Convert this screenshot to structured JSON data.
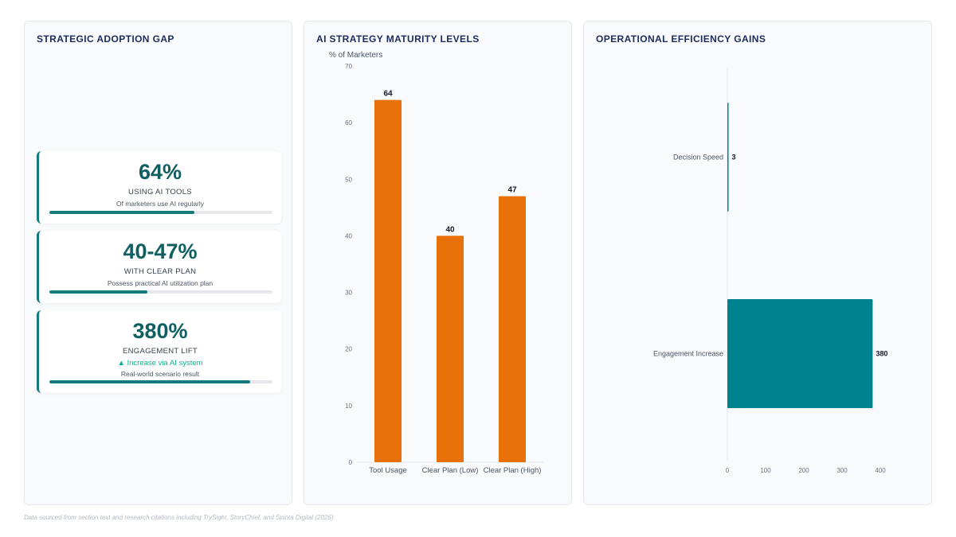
{
  "panel_adoption": {
    "title": "STRATEGIC ADOPTION GAP",
    "cards": [
      {
        "value": "64%",
        "label": "USING AI TOOLS",
        "trend": "",
        "sub": "Of marketers use AI regularly",
        "progress": 0.65
      },
      {
        "value": "40-47%",
        "label": "WITH CLEAR PLAN",
        "trend": "",
        "sub": "Possess practical AI utilization plan",
        "progress": 0.44
      },
      {
        "value": "380%",
        "label": "ENGAGEMENT LIFT",
        "trend": "▲ Increase via AI system",
        "sub": "Real-world scenario result",
        "progress": 0.9
      }
    ]
  },
  "panel_maturity": {
    "title": "AI STRATEGY MATURITY LEVELS"
  },
  "panel_efficiency": {
    "title": "OPERATIONAL EFFICIENCY GAINS"
  },
  "footer": {
    "note": "Data sourced from section text and research citations including TrySight, StoryChief, and Spinta Digital (2026)."
  },
  "colors": {
    "accent_teal": "#00838f",
    "bar_orange": "#e8710a",
    "title_navy": "#1e2a5a",
    "trend_green": "#10b08a"
  },
  "chart_data": [
    {
      "type": "bar",
      "orientation": "vertical",
      "title": "AI STRATEGY MATURITY LEVELS",
      "ylabel": "% of Marketers",
      "xlabel": "",
      "categories": [
        "Tool Usage",
        "Clear Plan (Low)",
        "Clear Plan (High)"
      ],
      "values": [
        64,
        40,
        47
      ],
      "data_labels": [
        "64",
        "40",
        "47"
      ],
      "ylim": [
        0,
        70
      ],
      "yticks": [
        0,
        10,
        20,
        30,
        40,
        50,
        60,
        70
      ],
      "ytick_labels": [
        "0",
        "10",
        "20",
        "30",
        "40",
        "50",
        "60",
        "70"
      ],
      "grid": false,
      "legend": "none",
      "color": "#e8710a"
    },
    {
      "type": "bar",
      "orientation": "horizontal",
      "title": "OPERATIONAL EFFICIENCY GAINS",
      "xlabel": "",
      "ylabel": "",
      "categories": [
        "Decision Speed",
        "Engagement Increase"
      ],
      "values": [
        3,
        380
      ],
      "data_labels": [
        "3",
        "380"
      ],
      "xlim": [
        0,
        420
      ],
      "xticks": [
        0,
        100,
        200,
        300,
        400
      ],
      "xtick_labels": [
        "0",
        "100",
        "200",
        "300",
        "400"
      ],
      "grid": false,
      "legend": "none",
      "color": "#00838f"
    }
  ]
}
